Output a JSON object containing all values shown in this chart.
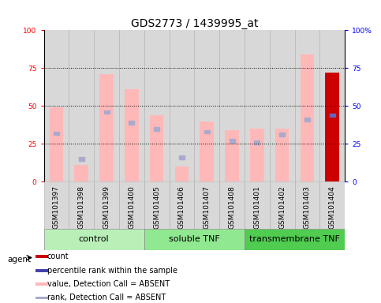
{
  "title": "GDS2773 / 1439995_at",
  "samples": [
    "GSM101397",
    "GSM101398",
    "GSM101399",
    "GSM101400",
    "GSM101405",
    "GSM101406",
    "GSM101407",
    "GSM101408",
    "GSM101401",
    "GSM101402",
    "GSM101403",
    "GSM101404"
  ],
  "pink_bar_values": [
    49,
    11,
    71,
    61,
    44,
    10,
    40,
    34,
    35,
    35,
    84,
    72
  ],
  "blue_mark_values": [
    32,
    15,
    46,
    39,
    35,
    16,
    33,
    27,
    26,
    31,
    41,
    44
  ],
  "is_red": [
    false,
    false,
    false,
    false,
    false,
    false,
    false,
    false,
    false,
    false,
    false,
    true
  ],
  "groups": [
    {
      "label": "control",
      "start": 0,
      "end": 4,
      "color": "#b8f0b8"
    },
    {
      "label": "soluble TNF",
      "start": 4,
      "end": 8,
      "color": "#90e890"
    },
    {
      "label": "transmembrane TNF",
      "start": 8,
      "end": 12,
      "color": "#50cc50"
    }
  ],
  "ylim": [
    0,
    100
  ],
  "yticks_left": [
    0,
    25,
    50,
    75,
    100
  ],
  "ytick_labels_left": [
    "0",
    "25",
    "50",
    "75",
    "100"
  ],
  "ytick_labels_right": [
    "0",
    "25",
    "50",
    "75",
    "100%"
  ],
  "pink_bar_color": "#ffb8b8",
  "red_bar_color": "#cc0000",
  "blue_mark_color": "#6666bb",
  "light_blue_mark_color": "#aaaacc",
  "legend_items": [
    {
      "color": "#cc0000",
      "label": "count"
    },
    {
      "color": "#4444aa",
      "label": "percentile rank within the sample"
    },
    {
      "color": "#ffb8b8",
      "label": "value, Detection Call = ABSENT"
    },
    {
      "color": "#aaaacc",
      "label": "rank, Detection Call = ABSENT"
    }
  ],
  "title_fontsize": 10,
  "tick_fontsize": 6.5,
  "group_fontsize": 8,
  "legend_fontsize": 7,
  "agent_label": "agent"
}
